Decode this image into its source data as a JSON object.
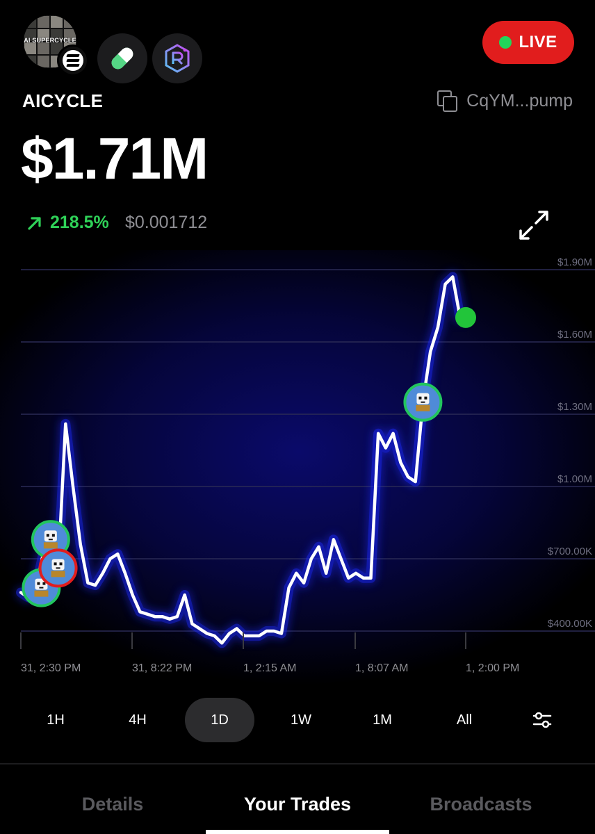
{
  "token": {
    "avatar_caption": "AI SUPERCYCLE",
    "ticker": "AICYCLE",
    "address": "CqYM...pump",
    "market_cap": "$1.71M",
    "change_pct": "218.5%",
    "price": "$0.001712"
  },
  "live_label": "LIVE",
  "icons": {
    "chain": "solana-icon",
    "platform": "pill-icon",
    "dex": "raydium-icon",
    "copy": "copy-icon",
    "expand": "expand-icon",
    "trend": "arrow-up-right-icon",
    "filter": "sliders-icon"
  },
  "colors": {
    "live": "#e11d1d",
    "positive": "#2fd158",
    "buy": "#22c55e",
    "sell": "#e11d1d",
    "line": "#ffffff",
    "glow": "#1f2bff"
  },
  "chart_data": {
    "type": "line",
    "title": "",
    "xlabel": "",
    "ylabel": "",
    "ylim": [
      300000,
      1950000
    ],
    "y_ticks": [
      {
        "value": 400000,
        "label": "$400.00K"
      },
      {
        "value": 700000,
        "label": "$700.00K"
      },
      {
        "value": 1000000,
        "label": "$1.00M"
      },
      {
        "value": 1300000,
        "label": "$1.30M"
      },
      {
        "value": 1600000,
        "label": "$1.60M"
      },
      {
        "value": 1900000,
        "label": "$1.90M"
      }
    ],
    "x_ticks": [
      "31, 2:30 PM",
      "31, 8:22 PM",
      "1, 2:15 AM",
      "1, 8:07 AM",
      "1, 2:00 PM"
    ],
    "grid": true,
    "series": [
      {
        "values": [
          560000,
          540000,
          580000,
          720000,
          780000,
          650000,
          1260000,
          1000000,
          760000,
          600000,
          590000,
          640000,
          700000,
          720000,
          640000,
          550000,
          480000,
          470000,
          460000,
          460000,
          450000,
          460000,
          550000,
          430000,
          410000,
          390000,
          380000,
          350000,
          390000,
          410000,
          380000,
          380000,
          380000,
          400000,
          400000,
          390000,
          580000,
          640000,
          600000,
          700000,
          750000,
          640000,
          780000,
          700000,
          620000,
          640000,
          620000,
          620000,
          1220000,
          1160000,
          1220000,
          1100000,
          1040000,
          1020000,
          1350000,
          1560000,
          1660000,
          1840000,
          1870000,
          1700000
        ]
      }
    ],
    "current_value": 1710000,
    "trade_markers": [
      {
        "index": 2,
        "side": "buy"
      },
      {
        "index": 4,
        "side": "buy"
      },
      {
        "index": 5,
        "side": "sell"
      },
      {
        "index": 54,
        "side": "buy"
      }
    ]
  },
  "ranges": [
    "1H",
    "4H",
    "1D",
    "1W",
    "1M",
    "All"
  ],
  "active_range": "1D",
  "tabs": [
    {
      "label": "Details",
      "active": false
    },
    {
      "label": "Your Trades",
      "active": true
    },
    {
      "label": "Broadcasts",
      "active": false
    }
  ]
}
